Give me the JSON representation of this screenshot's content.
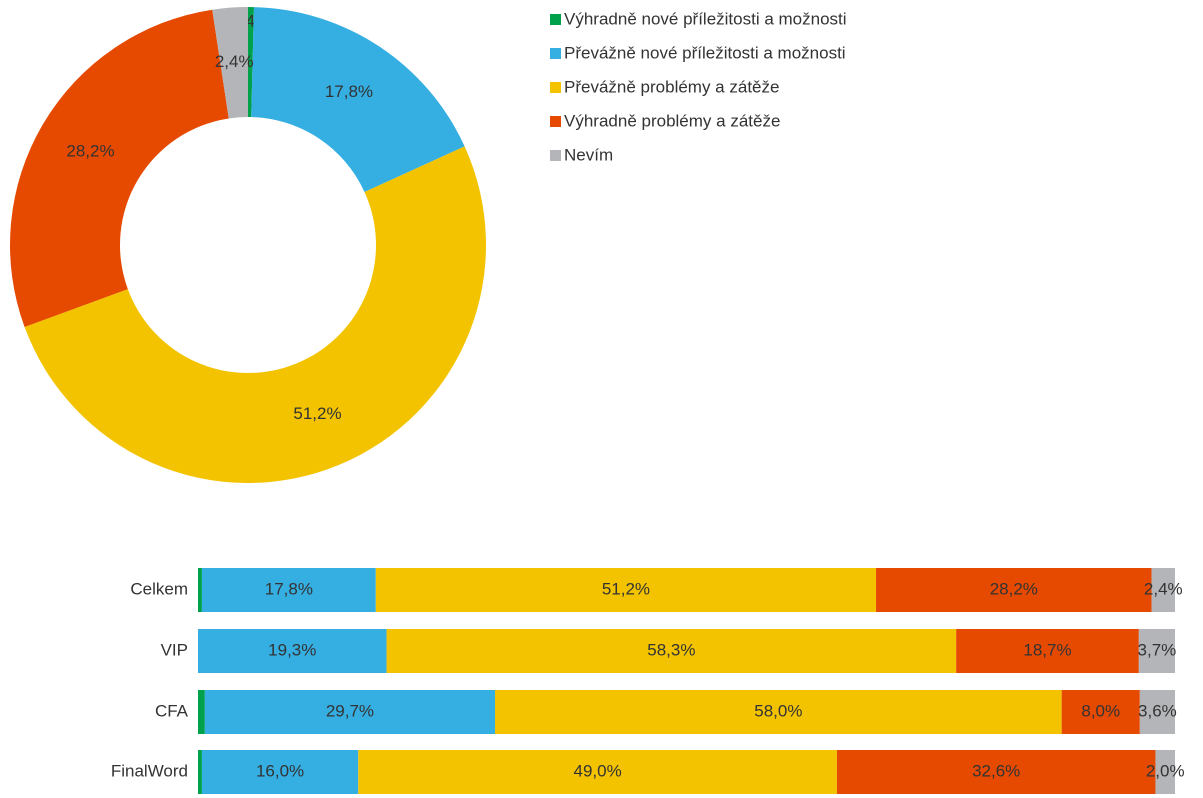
{
  "chart_data": [
    {
      "type": "donut",
      "categories": [
        "Výhradně nové příležitosti a možnosti",
        "Převážně nové příležitosti a možnosti",
        "Převážně problémy a zátěže",
        "Výhradně problémy a zátěže",
        "Nevím"
      ],
      "values": [
        0.4,
        17.8,
        51.2,
        28.2,
        2.4
      ],
      "value_labels": [
        "0,4%",
        "17,8%",
        "51,2%",
        "28,2%",
        "2,4%"
      ],
      "colors": [
        "#00a14b",
        "#35aee2",
        "#f3c300",
        "#e64a00",
        "#b3b5b9"
      ]
    },
    {
      "type": "stacked-bar-horizontal",
      "categories": [
        "Celkem",
        "VIP",
        "CFA",
        "FinalWord"
      ],
      "xlim": [
        0,
        100
      ],
      "series": [
        {
          "color": "#00a14b",
          "values": [
            0.4,
            0.0,
            0.7,
            0.4
          ],
          "value_labels": [
            null,
            null,
            null,
            null
          ]
        },
        {
          "color": "#35aee2",
          "values": [
            17.8,
            19.3,
            29.7,
            16.0
          ],
          "value_labels": [
            "17,8%",
            "19,3%",
            "29,7%",
            "16,0%"
          ]
        },
        {
          "color": "#f3c300",
          "values": [
            51.2,
            58.3,
            58.0,
            49.0
          ],
          "value_labels": [
            "51,2%",
            "58,3%",
            "58,0%",
            "49,0%"
          ]
        },
        {
          "color": "#e64a00",
          "values": [
            28.2,
            18.7,
            8.0,
            32.6
          ],
          "value_labels": [
            "28,2%",
            "18,7%",
            "8,0%",
            "32,6%"
          ]
        },
        {
          "color": "#b3b5b9",
          "values": [
            2.4,
            3.7,
            3.6,
            2.0
          ],
          "value_labels": [
            "2,4%",
            "3,7%",
            "3,6%",
            "2,0%"
          ]
        }
      ]
    }
  ]
}
